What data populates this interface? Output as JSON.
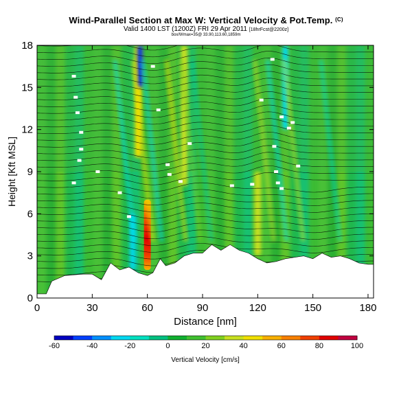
{
  "header": {
    "title": "Wind-Parallel Section at Max W: Vertical Velocity & Pot.Temp.",
    "title_unit": "(C)",
    "valid": "Valid 1400 LST (1200Z) FRI 29 Apr 2011",
    "forecast": "[18hrFcst@2200z]",
    "location": "box/Wmax=35@ 33.90,113.60,1859m"
  },
  "chart_data": {
    "type": "heatmap",
    "title": "Wind-Parallel Section at Max W: Vertical Velocity & Pot.Temp.",
    "xlabel": "Distance [nm]",
    "ylabel": "Height [Kft MSL]",
    "xlim": [
      0,
      183
    ],
    "ylim": [
      0,
      18
    ],
    "x_ticks": [
      0,
      30,
      60,
      90,
      120,
      150,
      180
    ],
    "y_ticks": [
      0,
      3,
      6,
      9,
      12,
      15,
      18
    ],
    "colorbar": {
      "label": "Vertical Velocity [cm/s]",
      "min": -60,
      "max": 100,
      "tick_values": [
        -60,
        -40,
        -20,
        0,
        20,
        40,
        60,
        80,
        100
      ],
      "colors": [
        "#0000c0",
        "#0040ff",
        "#0090ff",
        "#00d8f0",
        "#00e0c0",
        "#00c080",
        "#10b030",
        "#40c030",
        "#80d020",
        "#c8e020",
        "#f0e000",
        "#f8b000",
        "#f88000",
        "#f04000",
        "#e00000",
        "#c00040"
      ]
    },
    "field_features": [
      {
        "type": "updraft",
        "x": 60,
        "h_bottom": 2,
        "h_top": 7,
        "peak_cm_s": 100
      },
      {
        "type": "updraft",
        "x": 55,
        "h_bottom": 10,
        "h_top": 18,
        "peak_cm_s": 40
      },
      {
        "type": "updraft",
        "x": 80,
        "h_bottom": 8,
        "h_top": 18,
        "peak_cm_s": 30
      },
      {
        "type": "updraft",
        "x": 120,
        "h_bottom": 3,
        "h_top": 9,
        "peak_cm_s": 25
      },
      {
        "type": "downdraft",
        "x": 52,
        "h_bottom": 2,
        "h_top": 6,
        "peak_cm_s": -30
      },
      {
        "type": "downdraft",
        "x": 56,
        "h_bottom": 15,
        "h_top": 18,
        "peak_cm_s": -55
      },
      {
        "type": "downdraft",
        "x": 135,
        "h_bottom": 12,
        "h_top": 18,
        "peak_cm_s": -15
      }
    ],
    "terrain": [
      [
        0,
        0.3
      ],
      [
        5,
        0.3
      ],
      [
        8,
        1.2
      ],
      [
        15,
        1.6
      ],
      [
        25,
        1.7
      ],
      [
        30,
        1.7
      ],
      [
        35,
        1.3
      ],
      [
        40,
        2.5
      ],
      [
        45,
        2.0
      ],
      [
        50,
        2.2
      ],
      [
        55,
        1.8
      ],
      [
        60,
        1.6
      ],
      [
        63,
        1.8
      ],
      [
        67,
        2.8
      ],
      [
        70,
        2.3
      ],
      [
        75,
        2.5
      ],
      [
        80,
        3.0
      ],
      [
        85,
        3.2
      ],
      [
        90,
        3.2
      ],
      [
        95,
        3.8
      ],
      [
        100,
        3.4
      ],
      [
        105,
        3.8
      ],
      [
        110,
        3.4
      ],
      [
        115,
        3.2
      ],
      [
        120,
        2.8
      ],
      [
        125,
        2.5
      ],
      [
        130,
        2.6
      ],
      [
        135,
        2.8
      ],
      [
        140,
        2.9
      ],
      [
        145,
        3.0
      ],
      [
        150,
        2.8
      ],
      [
        155,
        3.2
      ],
      [
        160,
        2.9
      ],
      [
        165,
        3.0
      ],
      [
        170,
        2.8
      ],
      [
        175,
        2.5
      ],
      [
        180,
        2.4
      ],
      [
        183,
        2.4
      ]
    ]
  }
}
